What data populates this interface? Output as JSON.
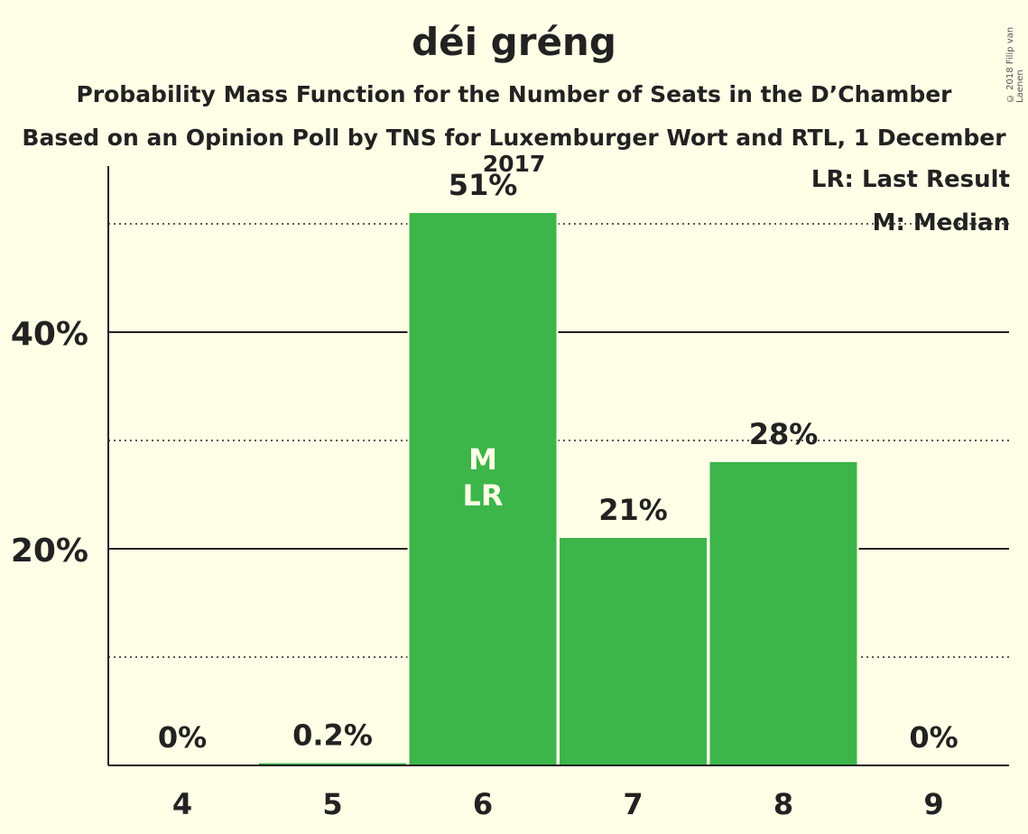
{
  "chart_data": {
    "type": "bar",
    "title": "déi gréng",
    "subtitle": "Probability Mass Function for the Number of Seats in the D’Chamber",
    "subtitle2": "Based on an Opinion Poll by TNS for Luxemburger Wort and RTL, 1 December 2017",
    "categories": [
      "4",
      "5",
      "6",
      "7",
      "8",
      "9"
    ],
    "values": [
      0,
      0.2,
      51,
      21,
      28,
      0
    ],
    "value_labels": [
      "0%",
      "0.2%",
      "51%",
      "21%",
      "28%",
      "0%"
    ],
    "bar_annotations": [
      "",
      "",
      "M\nLR",
      "",
      "",
      ""
    ],
    "ylim": [
      0,
      55
    ],
    "y_ticks": [
      {
        "value": 20,
        "label": "20%"
      },
      {
        "value": 40,
        "label": "40%"
      }
    ],
    "y_minor_ticks": [
      10,
      30,
      50
    ],
    "bar_color": "#3CB54A",
    "legend_placement": "top-right",
    "legend": [
      "LR: Last Result",
      "M: Median"
    ],
    "copyright": "© 2018 Filip van Laenen"
  }
}
